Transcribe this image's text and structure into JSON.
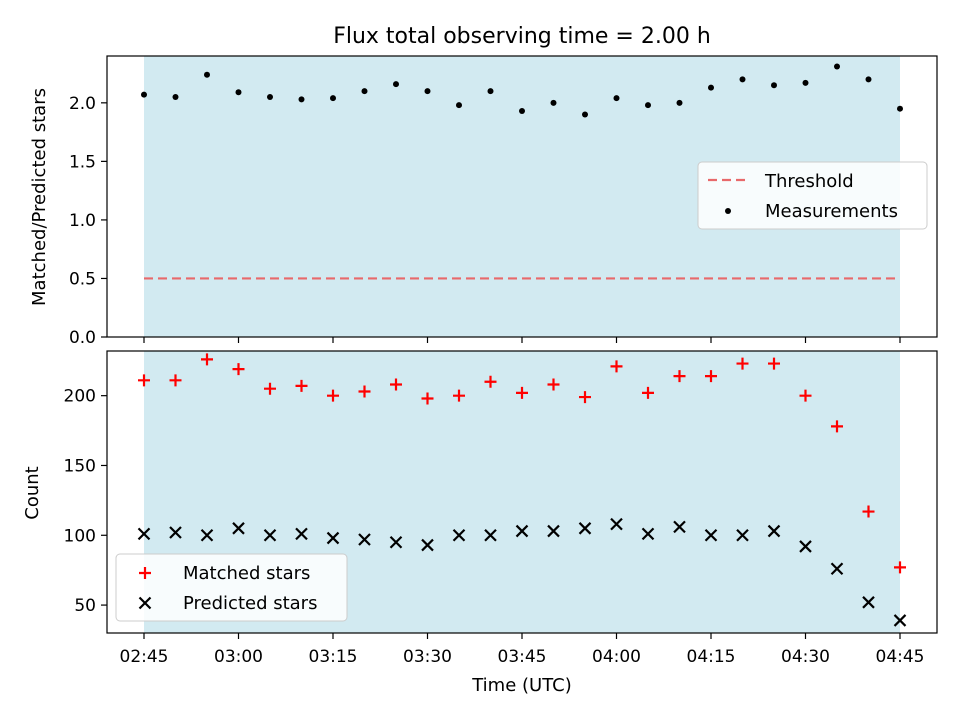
{
  "title": "Flux total observing time = 2.00 h",
  "colors": {
    "shade": "#add8e6",
    "threshold": "#e8696b",
    "matched": "#ff0000",
    "predicted": "#000000",
    "measurements": "#000000"
  },
  "chart_data": [
    {
      "type": "scatter",
      "panel": "top",
      "title": "Flux total observing time = 2.00 h",
      "xlabel": "",
      "ylabel": "Matched/Predicted stars",
      "ylim": [
        0,
        2.4
      ],
      "y_ticks": [
        "0.0",
        "0.5",
        "1.0",
        "1.5",
        "2.0"
      ],
      "x_ticks": [
        "02:45",
        "03:00",
        "03:15",
        "03:30",
        "03:45",
        "04:00",
        "04:15",
        "04:30",
        "04:45"
      ],
      "grid": false,
      "legend": "center-right",
      "shaded_span": [
        "02:45",
        "04:45"
      ],
      "x": [
        "02:45",
        "02:50",
        "02:55",
        "03:00",
        "03:05",
        "03:10",
        "03:15",
        "03:20",
        "03:25",
        "03:30",
        "03:35",
        "03:40",
        "03:45",
        "03:50",
        "03:55",
        "04:00",
        "04:05",
        "04:10",
        "04:15",
        "04:20",
        "04:25",
        "04:30",
        "04:35",
        "04:40",
        "04:45"
      ],
      "threshold": {
        "name": "Threshold",
        "value": 0.5
      },
      "series": [
        {
          "name": "Measurements",
          "values": [
            2.07,
            2.05,
            2.24,
            2.09,
            2.05,
            2.03,
            2.04,
            2.1,
            2.16,
            2.1,
            1.98,
            2.1,
            1.93,
            2.0,
            1.9,
            2.04,
            1.98,
            2.0,
            2.13,
            2.2,
            2.15,
            2.17,
            2.31,
            2.2,
            1.95
          ]
        }
      ]
    },
    {
      "type": "scatter",
      "panel": "bottom",
      "xlabel": "Time (UTC)",
      "ylabel": "Count",
      "ylim": [
        30,
        232
      ],
      "y_ticks": [
        "50",
        "100",
        "150",
        "200"
      ],
      "x_ticks": [
        "02:45",
        "03:00",
        "03:15",
        "03:30",
        "03:45",
        "04:00",
        "04:15",
        "04:30",
        "04:45"
      ],
      "grid": false,
      "legend": "lower-left",
      "shaded_span": [
        "02:45",
        "04:45"
      ],
      "x": [
        "02:45",
        "02:50",
        "02:55",
        "03:00",
        "03:05",
        "03:10",
        "03:15",
        "03:20",
        "03:25",
        "03:30",
        "03:35",
        "03:40",
        "03:45",
        "03:50",
        "03:55",
        "04:00",
        "04:05",
        "04:10",
        "04:15",
        "04:20",
        "04:25",
        "04:30",
        "04:35",
        "04:40",
        "04:45"
      ],
      "series": [
        {
          "name": "Matched stars",
          "marker": "+",
          "values": [
            211,
            211,
            226,
            219,
            205,
            207,
            200,
            203,
            208,
            198,
            200,
            210,
            202,
            208,
            199,
            221,
            202,
            214,
            214,
            223,
            223,
            200,
            178,
            117,
            77
          ]
        },
        {
          "name": "Predicted stars",
          "marker": "x",
          "values": [
            101,
            102,
            100,
            105,
            100,
            101,
            98,
            97,
            95,
            93,
            100,
            100,
            103,
            103,
            105,
            108,
            101,
            106,
            100,
            100,
            103,
            92,
            76,
            52,
            39
          ]
        }
      ]
    }
  ]
}
